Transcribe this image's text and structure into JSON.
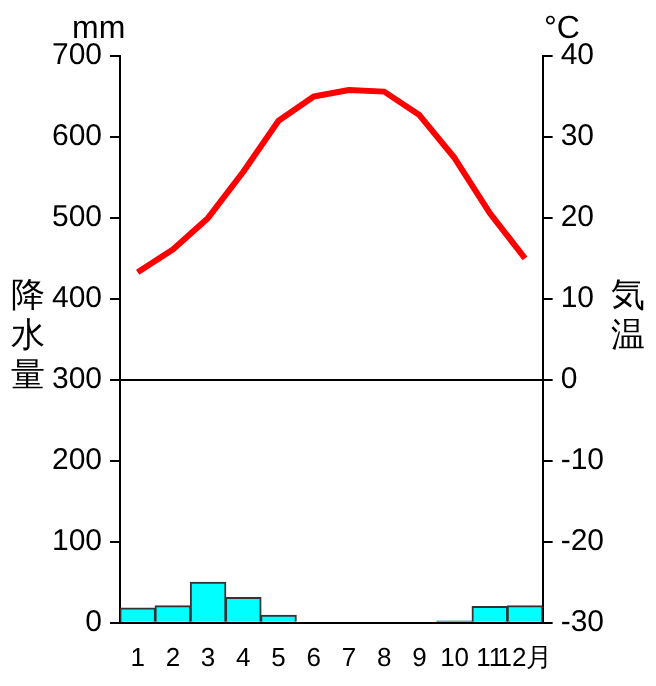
{
  "chart_data": {
    "type": "bar",
    "ylabel": "降水量",
    "y2label": "気温",
    "annotations": [
      "mm",
      "°C"
    ],
    "categories": [
      "1",
      "2",
      "3",
      "4",
      "5",
      "6",
      "7",
      "8",
      "9",
      "10",
      "11",
      "12月"
    ],
    "series": [
      {
        "color": "#00ffff",
        "values": [
          18,
          21,
          50,
          31,
          9,
          0,
          0,
          0,
          0,
          2,
          20,
          21
        ]
      },
      {
        "type": "line",
        "axis": "y2",
        "color": "#ff0000",
        "values": [
          13.3,
          16.1,
          20.0,
          25.7,
          32.0,
          35.0,
          35.8,
          35.6,
          32.7,
          27.4,
          20.6,
          15.0
        ]
      }
    ],
    "ylim": [
      0,
      700
    ],
    "yticks": [
      0,
      100,
      200,
      300,
      400,
      500,
      600,
      700
    ],
    "y2lim": [
      -30,
      40
    ],
    "y2ticks": [
      -30,
      -20,
      -10,
      0,
      10,
      20,
      30,
      40
    ],
    "ref_lines": [
      {
        "axis": "y2",
        "value": 0,
        "color": "#000000"
      }
    ]
  }
}
